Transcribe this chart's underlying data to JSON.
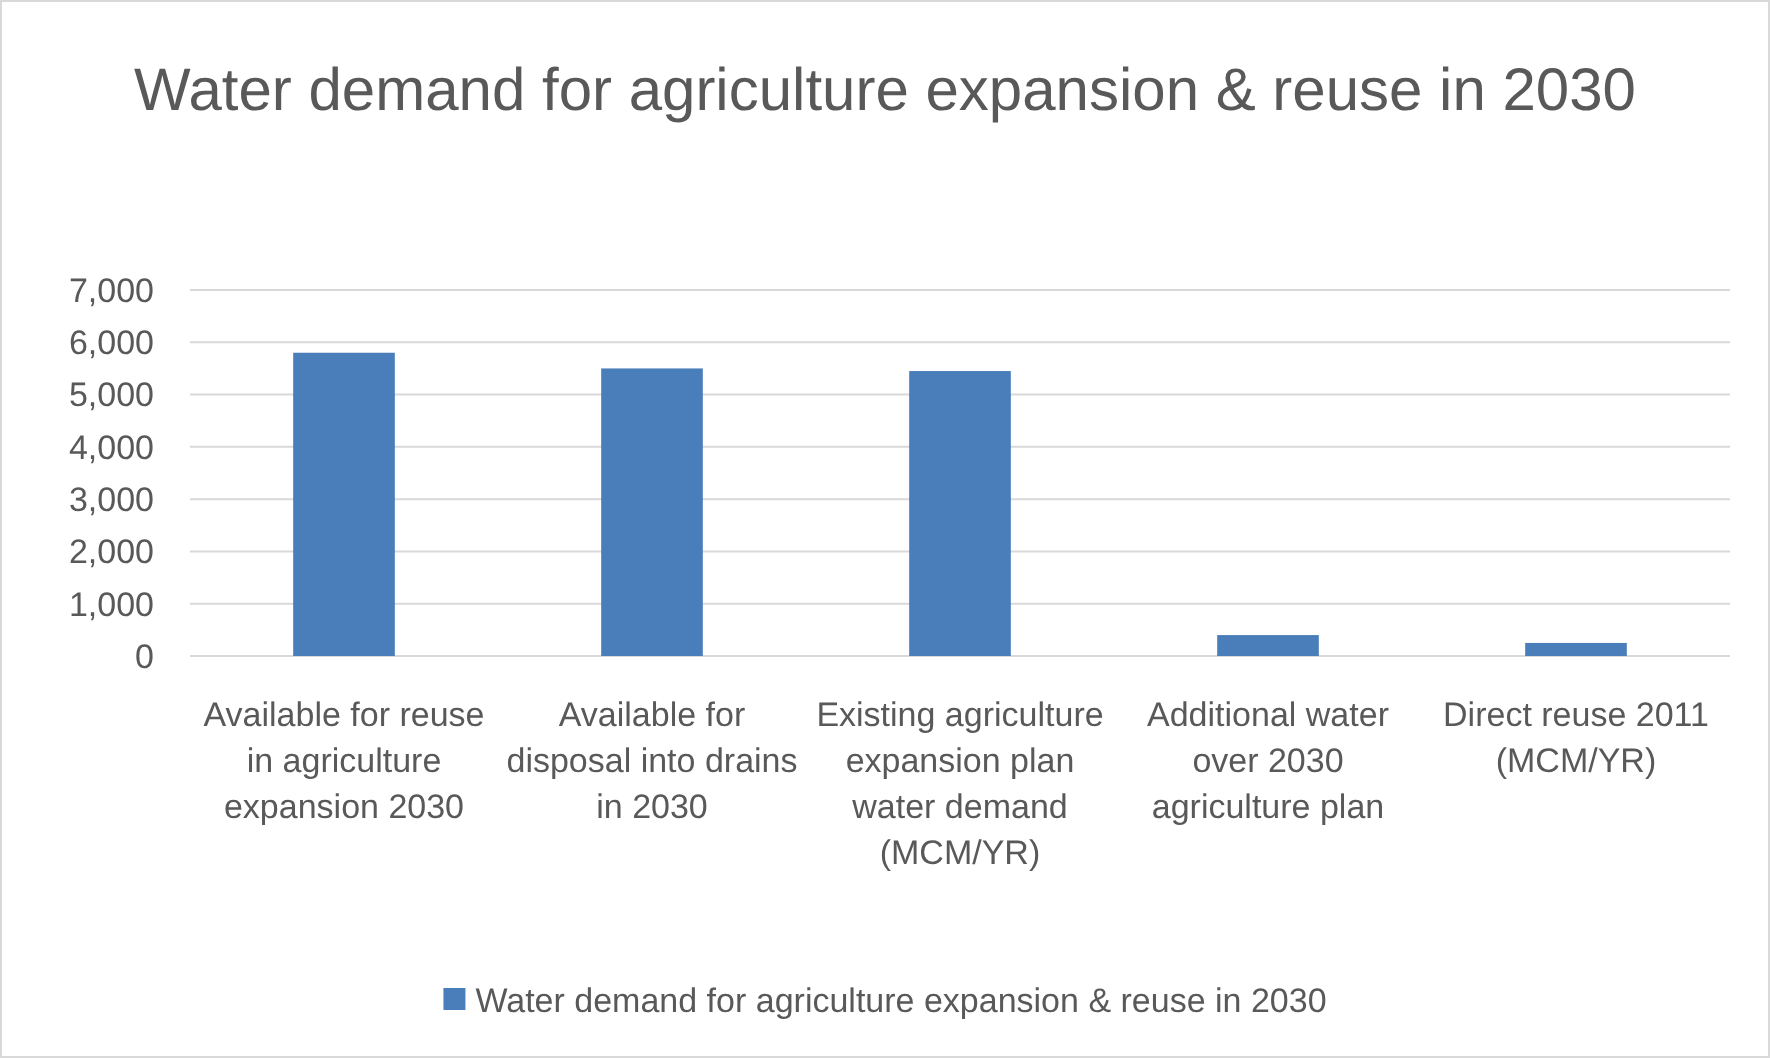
{
  "chart_data": {
    "type": "bar",
    "title": "Water demand for agriculture expansion & reuse in 2030",
    "categories": [
      "Available for reuse in agriculture expansion 2030",
      "Available for disposal into drains in 2030",
      "Existing agriculture expansion plan water demand (MCM/YR)",
      "Additional water over 2030 agriculture plan",
      "Direct reuse 2011 (MCM/YR)"
    ],
    "series": [
      {
        "name": "Water demand for agriculture expansion & reuse in 2030",
        "color": "#4a7ebb",
        "values": [
          5800,
          5500,
          5450,
          400,
          250
        ]
      }
    ],
    "ylim": [
      0,
      7000
    ],
    "yticks": [
      {
        "value": 0,
        "label": "0"
      },
      {
        "value": 1000,
        "label": "1,000"
      },
      {
        "value": 2000,
        "label": "2,000"
      },
      {
        "value": 3000,
        "label": "3,000"
      },
      {
        "value": 4000,
        "label": "4,000"
      },
      {
        "value": 5000,
        "label": "5,000"
      },
      {
        "value": 6000,
        "label": "6,000"
      },
      {
        "value": 7000,
        "label": "7,000"
      }
    ],
    "grid": "y",
    "legend": "bottom"
  }
}
